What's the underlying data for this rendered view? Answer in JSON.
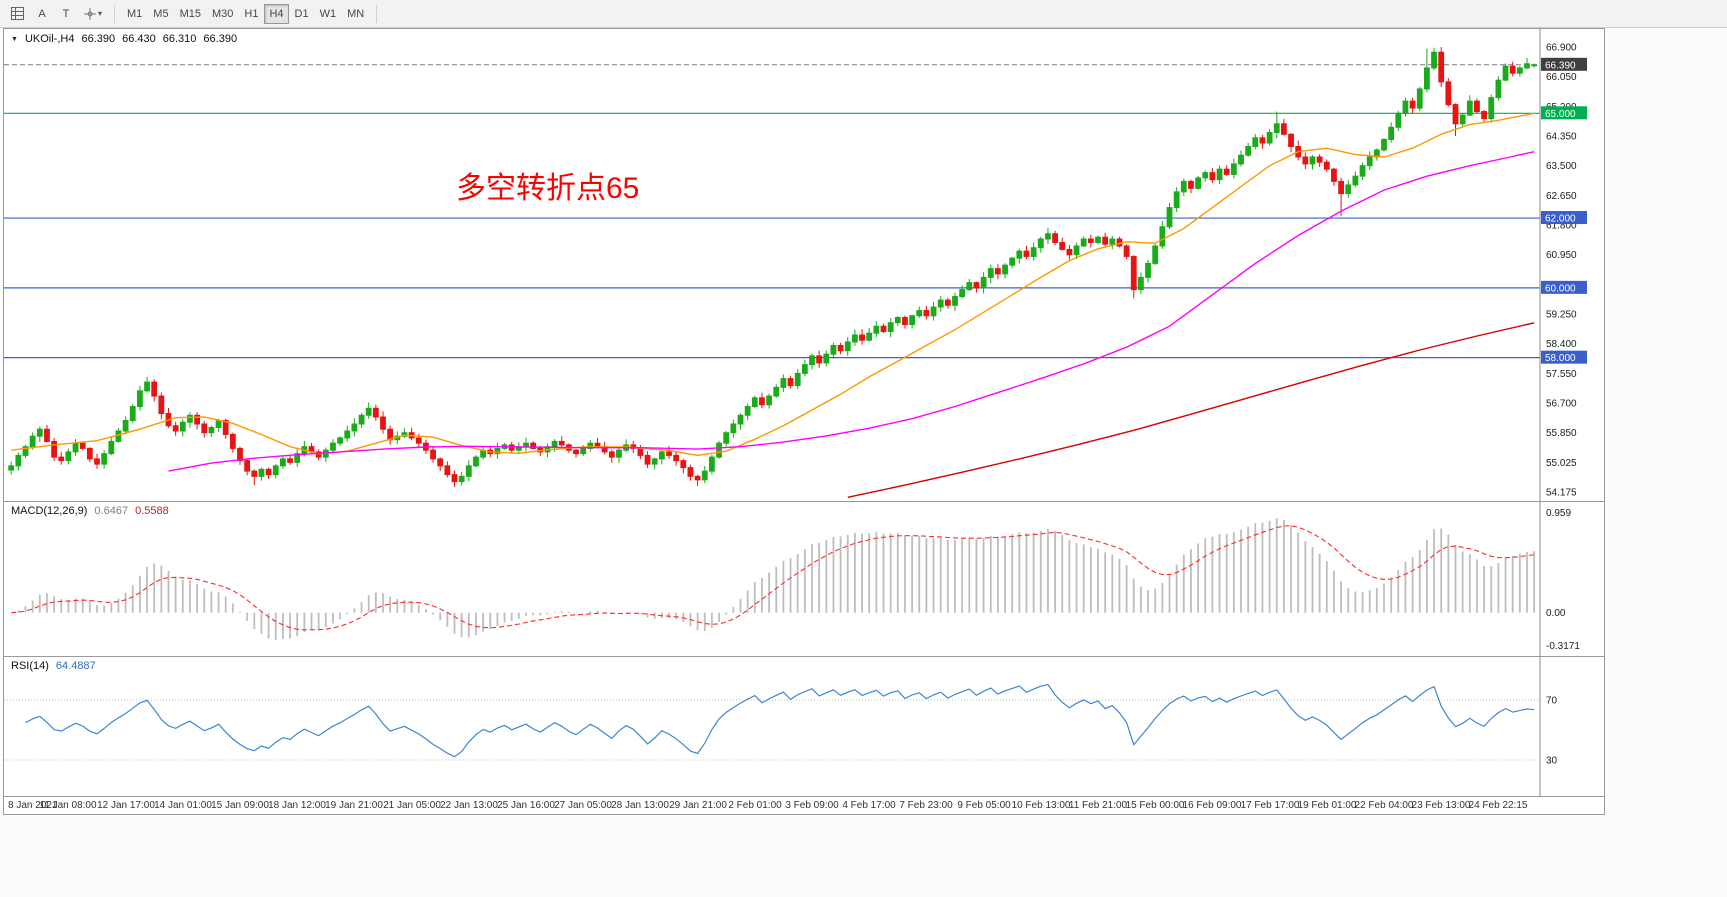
{
  "toolbar": {
    "tools": {
      "annotate_label": "A",
      "text_label": "T"
    },
    "timeframes": [
      "M1",
      "M5",
      "M15",
      "M30",
      "H1",
      "H4",
      "D1",
      "W1",
      "MN"
    ],
    "active_timeframe": "H4"
  },
  "window": {
    "symbol_title": {
      "symbol": "UKOil-,H4",
      "open": "66.390",
      "high": "66.430",
      "low": "66.310",
      "close": "66.390"
    }
  },
  "annotation": {
    "text": "多空转折点65",
    "color": "#ff0000"
  },
  "chart_data": {
    "type": "candlestick",
    "title": "UKOil-,H4",
    "candle_up_color": "#1aab1a",
    "candle_down_color": "#e81414",
    "current_price": 66.39,
    "current_price_label": "66.390",
    "current_badge_bg": "#3f3f3f",
    "y_labels": [
      "66.900",
      "66.050",
      "65.200",
      "64.350",
      "63.500",
      "62.650",
      "61.800",
      "60.950",
      "60.100",
      "59.250",
      "58.400",
      "57.550",
      "56.700",
      "55.850",
      "55.025",
      "54.175"
    ],
    "x_labels": [
      "8 Jan 2021",
      "11 Jan 08:00",
      "12 Jan 17:00",
      "14 Jan 01:00",
      "15 Jan 09:00",
      "18 Jan 12:00",
      "19 Jan 21:00",
      "21 Jan 05:00",
      "22 Jan 13:00",
      "25 Jan 16:00",
      "27 Jan 05:00",
      "28 Jan 13:00",
      "29 Jan 21:00",
      "2 Feb 01:00",
      "3 Feb 09:00",
      "4 Feb 17:00",
      "7 Feb 23:00",
      "9 Feb 05:00",
      "10 Feb 13:00",
      "11 Feb 21:00",
      "15 Feb 00:00",
      "16 Feb 09:00",
      "17 Feb 17:00",
      "19 Feb 01:00",
      "22 Feb 04:00",
      "23 Feb 13:00",
      "24 Feb 22:15"
    ],
    "hlines": [
      {
        "price": 65.0,
        "label": "65.000",
        "color": "#00b050"
      },
      {
        "price": 62.0,
        "label": "62.000",
        "color": "#3a5fcd"
      },
      {
        "price": 60.0,
        "label": "60.000",
        "color": "#3a5fcd"
      },
      {
        "price": 58.0,
        "label": "58.000",
        "color": "#3a5fcd"
      }
    ],
    "closes": [
      54.9,
      55.2,
      55.45,
      55.75,
      55.95,
      55.6,
      55.15,
      55.05,
      55.3,
      55.55,
      55.4,
      55.1,
      54.95,
      55.25,
      55.6,
      55.9,
      56.2,
      56.6,
      57.05,
      57.3,
      56.9,
      56.4,
      56.05,
      55.9,
      56.15,
      56.35,
      56.1,
      55.85,
      56.0,
      56.2,
      55.8,
      55.4,
      55.05,
      54.75,
      54.6,
      54.8,
      54.65,
      54.9,
      55.1,
      55.0,
      55.25,
      55.45,
      55.3,
      55.15,
      55.35,
      55.55,
      55.7,
      55.9,
      56.1,
      56.35,
      56.55,
      56.3,
      55.95,
      55.65,
      55.75,
      55.85,
      55.7,
      55.55,
      55.35,
      55.1,
      54.9,
      54.65,
      54.45,
      54.6,
      54.9,
      55.15,
      55.35,
      55.25,
      55.4,
      55.5,
      55.35,
      55.45,
      55.55,
      55.4,
      55.3,
      55.45,
      55.6,
      55.5,
      55.35,
      55.25,
      55.4,
      55.55,
      55.45,
      55.3,
      55.15,
      55.35,
      55.5,
      55.4,
      55.2,
      54.95,
      55.1,
      55.3,
      55.2,
      55.05,
      54.85,
      54.6,
      54.5,
      54.75,
      55.15,
      55.55,
      55.85,
      56.1,
      56.35,
      56.6,
      56.85,
      56.65,
      56.9,
      57.15,
      57.4,
      57.2,
      57.55,
      57.8,
      58.05,
      57.85,
      58.1,
      58.35,
      58.2,
      58.45,
      58.65,
      58.5,
      58.7,
      58.9,
      58.75,
      59.0,
      59.15,
      58.95,
      59.2,
      59.35,
      59.2,
      59.45,
      59.65,
      59.5,
      59.75,
      59.95,
      60.15,
      60.0,
      60.3,
      60.55,
      60.4,
      60.65,
      60.85,
      61.05,
      60.9,
      61.15,
      61.4,
      61.55,
      61.3,
      61.1,
      60.95,
      61.2,
      61.4,
      61.3,
      61.45,
      61.25,
      61.4,
      61.2,
      60.9,
      59.95,
      60.3,
      60.7,
      61.2,
      61.75,
      62.3,
      62.75,
      63.05,
      62.85,
      63.15,
      63.3,
      63.1,
      63.4,
      63.25,
      63.55,
      63.8,
      64.05,
      64.3,
      64.15,
      64.45,
      64.7,
      64.4,
      64.05,
      63.75,
      63.55,
      63.75,
      63.6,
      63.4,
      63.05,
      62.7,
      62.95,
      63.2,
      63.5,
      63.75,
      63.95,
      64.25,
      64.6,
      65.0,
      65.35,
      65.15,
      65.7,
      66.3,
      66.75,
      65.9,
      65.25,
      64.7,
      64.95,
      65.35,
      65.05,
      64.85,
      65.45,
      65.95,
      66.35,
      66.15,
      66.3,
      66.42,
      66.39
    ],
    "wick_highs": {
      "19": 57.45,
      "50": 56.72,
      "177": 65.05,
      "198": 66.85,
      "199": 66.88
    },
    "wick_lows": {
      "34": 54.35,
      "62": 54.3,
      "96": 54.32,
      "157": 59.7,
      "186": 62.05,
      "202": 64.35
    },
    "last_bar_ohlc": {
      "open": 66.39,
      "high": 66.43,
      "low": 66.31,
      "close": 66.39
    },
    "moving_averages": [
      {
        "name": "fast",
        "color": "#ff9900",
        "points": [
          [
            0,
            55.35
          ],
          [
            6,
            55.5
          ],
          [
            12,
            55.62
          ],
          [
            18,
            55.95
          ],
          [
            23,
            56.28
          ],
          [
            27,
            56.3
          ],
          [
            31,
            56.12
          ],
          [
            35,
            55.8
          ],
          [
            39,
            55.45
          ],
          [
            43,
            55.25
          ],
          [
            47,
            55.32
          ],
          [
            51,
            55.55
          ],
          [
            55,
            55.78
          ],
          [
            59,
            55.72
          ],
          [
            63,
            55.48
          ],
          [
            67,
            55.3
          ],
          [
            71,
            55.26
          ],
          [
            75,
            55.36
          ],
          [
            80,
            55.44
          ],
          [
            86,
            55.44
          ],
          [
            92,
            55.34
          ],
          [
            96,
            55.2
          ],
          [
            100,
            55.32
          ],
          [
            104,
            55.66
          ],
          [
            108,
            56.05
          ],
          [
            112,
            56.5
          ],
          [
            116,
            56.95
          ],
          [
            120,
            57.45
          ],
          [
            124,
            57.9
          ],
          [
            128,
            58.35
          ],
          [
            132,
            58.8
          ],
          [
            136,
            59.3
          ],
          [
            140,
            59.8
          ],
          [
            144,
            60.3
          ],
          [
            148,
            60.78
          ],
          [
            152,
            61.12
          ],
          [
            156,
            61.32
          ],
          [
            160,
            61.28
          ],
          [
            164,
            61.7
          ],
          [
            168,
            62.3
          ],
          [
            172,
            62.9
          ],
          [
            176,
            63.5
          ],
          [
            180,
            63.9
          ],
          [
            184,
            64.0
          ],
          [
            188,
            63.82
          ],
          [
            192,
            63.75
          ],
          [
            196,
            64.0
          ],
          [
            200,
            64.4
          ],
          [
            204,
            64.68
          ],
          [
            208,
            64.8
          ],
          [
            213,
            65.0
          ]
        ]
      },
      {
        "name": "mid",
        "color": "#ff00ff",
        "points": [
          [
            22,
            54.75
          ],
          [
            28,
            54.98
          ],
          [
            34,
            55.12
          ],
          [
            40,
            55.22
          ],
          [
            46,
            55.3
          ],
          [
            52,
            55.38
          ],
          [
            58,
            55.44
          ],
          [
            64,
            55.46
          ],
          [
            72,
            55.44
          ],
          [
            80,
            55.42
          ],
          [
            88,
            55.42
          ],
          [
            96,
            55.38
          ],
          [
            102,
            55.45
          ],
          [
            108,
            55.58
          ],
          [
            114,
            55.76
          ],
          [
            120,
            55.98
          ],
          [
            126,
            56.25
          ],
          [
            132,
            56.6
          ],
          [
            138,
            57.0
          ],
          [
            144,
            57.4
          ],
          [
            150,
            57.82
          ],
          [
            156,
            58.3
          ],
          [
            162,
            58.9
          ],
          [
            168,
            59.8
          ],
          [
            174,
            60.7
          ],
          [
            180,
            61.5
          ],
          [
            186,
            62.2
          ],
          [
            192,
            62.8
          ],
          [
            198,
            63.2
          ],
          [
            204,
            63.5
          ],
          [
            209,
            63.72
          ],
          [
            213,
            63.9
          ]
        ]
      },
      {
        "name": "slow",
        "color": "#d40000",
        "points": [
          [
            117,
            54.0
          ],
          [
            125,
            54.35
          ],
          [
            133,
            54.72
          ],
          [
            141,
            55.1
          ],
          [
            149,
            55.5
          ],
          [
            157,
            55.92
          ],
          [
            165,
            56.38
          ],
          [
            173,
            56.85
          ],
          [
            181,
            57.32
          ],
          [
            189,
            57.78
          ],
          [
            197,
            58.22
          ],
          [
            205,
            58.62
          ],
          [
            213,
            59.0
          ]
        ]
      }
    ],
    "macd": {
      "label": "MACD(12,26,9)",
      "values": [
        "0.6467",
        "0.5588"
      ],
      "params": [
        12,
        26,
        9
      ],
      "y_labels": [
        "0.959",
        "0.00",
        "-0.3171"
      ],
      "hist_color": "#bdbdbd",
      "signal_color": "#ff2a2a"
    },
    "rsi": {
      "label": "RSI(14)",
      "value": "64.4887",
      "period": 14,
      "levels": [
        70,
        30
      ],
      "level_labels": [
        "70",
        "30"
      ],
      "color": "#3d86d6"
    }
  }
}
